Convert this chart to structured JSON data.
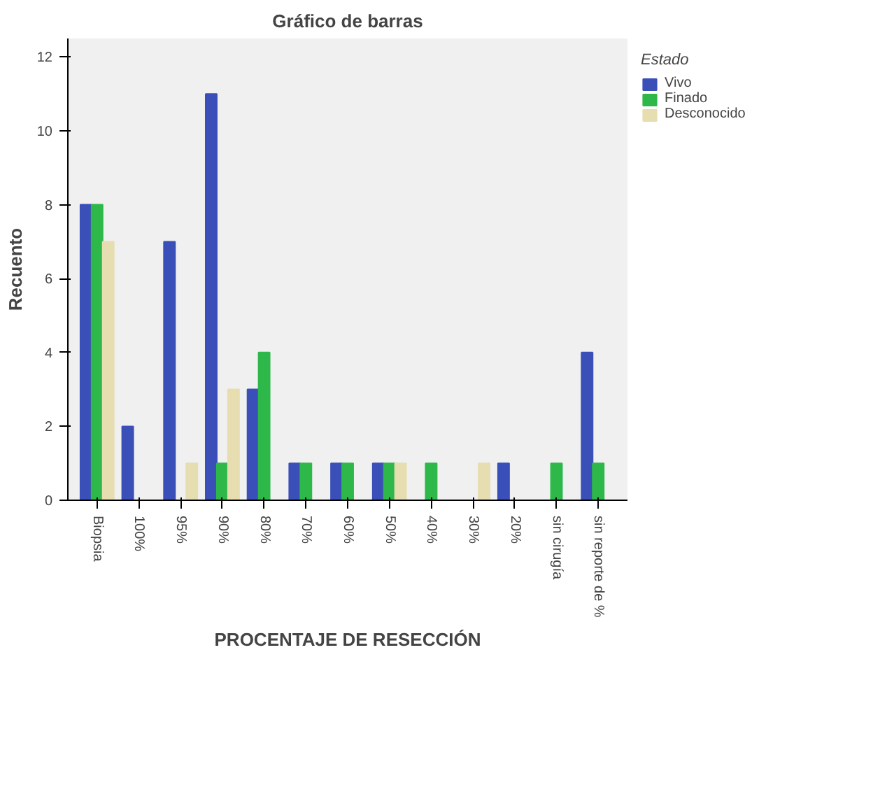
{
  "chart_data": {
    "type": "bar",
    "title": "Gráfico de barras",
    "xlabel": "PROCENTAJE DE RESECCIÓN",
    "ylabel": "Recuento",
    "legend_title": "Estado",
    "legend": "right",
    "grid": false,
    "categories": [
      "Biopsia",
      "100%",
      "95%",
      "90%",
      "80%",
      "70%",
      "60%",
      "50%",
      "40%",
      "30%",
      "20%",
      "sin cirugía",
      "sin reporte de %"
    ],
    "ylim": [
      0,
      12.5
    ],
    "yticks": [
      0,
      2,
      4,
      6,
      8,
      10,
      12
    ],
    "series": [
      {
        "name": "Vivo",
        "color": "#3a4fb8",
        "values": [
          8,
          2,
          7,
          11,
          3,
          1,
          1,
          1,
          0,
          0,
          1,
          0,
          4
        ]
      },
      {
        "name": "Finado",
        "color": "#2eb84a",
        "values": [
          8,
          0,
          0,
          1,
          4,
          1,
          1,
          1,
          1,
          0,
          0,
          1,
          1
        ]
      },
      {
        "name": "Desconocido",
        "color": "#e6ddb0",
        "values": [
          7,
          0,
          1,
          3,
          0,
          0,
          0,
          1,
          0,
          1,
          0,
          0,
          0
        ]
      }
    ]
  }
}
